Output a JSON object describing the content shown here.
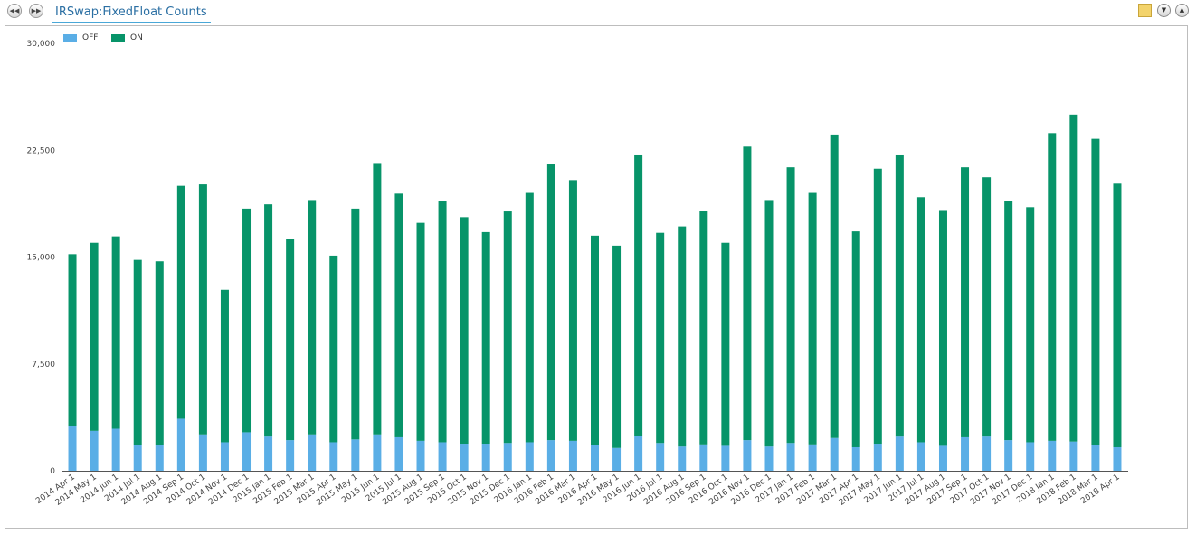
{
  "toolbar": {
    "tab_title": "IRSwap:FixedFloat Counts",
    "prev_icon": "rewind-icon",
    "next_icon": "fast-forward-icon",
    "right_icons": [
      "note-icon",
      "collapse-down-icon",
      "expand-up-icon"
    ]
  },
  "colors": {
    "off": "#5aaee6",
    "on": "#079469",
    "axis": "#555555",
    "text": "#444444"
  },
  "chart_data": {
    "type": "bar",
    "stacked": true,
    "title": "",
    "xlabel": "",
    "ylabel": "",
    "ylim": [
      0,
      30000
    ],
    "yticks": [
      "0",
      "7,500",
      "15,000",
      "22,500",
      "30,000"
    ],
    "ytick_values": [
      0,
      7500,
      15000,
      22500,
      30000
    ],
    "grid": false,
    "legend_position": "top-left",
    "categories": [
      "2014 Apr 1",
      "2014 May 1",
      "2014 Jun 1",
      "2014 Jul 1",
      "2014 Aug 1",
      "2014 Sep 1",
      "2014 Oct 1",
      "2014 Nov 1",
      "2014 Dec 1",
      "2015 Jan 1",
      "2015 Feb 1",
      "2015 Mar 1",
      "2015 Apr 1",
      "2015 May 1",
      "2015 Jun 1",
      "2015 Jul 1",
      "2015 Aug 1",
      "2015 Sep 1",
      "2015 Oct 1",
      "2015 Nov 1",
      "2015 Dec 1",
      "2016 Jan 1",
      "2016 Feb 1",
      "2016 Mar 1",
      "2016 Apr 1",
      "2016 May 1",
      "2016 Jun 1",
      "2016 Jul 1",
      "2016 Aug 1",
      "2016 Sep 1",
      "2016 Oct 1",
      "2016 Nov 1",
      "2016 Dec 1",
      "2017 Jan 1",
      "2017 Feb 1",
      "2017 Mar 1",
      "2017 Apr 1",
      "2017 May 1",
      "2017 Jun 1",
      "2017 Jul 1",
      "2017 Aug 1",
      "2017 Sep 1",
      "2017 Oct 1",
      "2017 Nov 1",
      "2017 Dec 1",
      "2018 Jan 1",
      "2018 Feb 1",
      "2018 Mar 1",
      "2018 Apr 1"
    ],
    "series": [
      {
        "name": "OFF",
        "values": [
          3150,
          2800,
          2950,
          1800,
          1800,
          3650,
          2550,
          2000,
          2700,
          2400,
          2150,
          2550,
          2000,
          2200,
          2550,
          2350,
          2100,
          2000,
          1900,
          1900,
          1950,
          2000,
          2150,
          2100,
          1800,
          1600,
          2450,
          1950,
          1700,
          1850,
          1750,
          2150,
          1700,
          1950,
          1850,
          2300,
          1650,
          1900,
          2400,
          2000,
          1750,
          2350,
          2400,
          2150,
          2000,
          2100,
          2050,
          1800,
          1650
        ]
      },
      {
        "name": "ON",
        "values": [
          12050,
          13200,
          13500,
          13000,
          12900,
          16350,
          17550,
          10700,
          15700,
          16300,
          14150,
          16450,
          13100,
          16200,
          19050,
          17100,
          15300,
          16900,
          15900,
          14850,
          16250,
          17500,
          19350,
          18300,
          14700,
          14200,
          19750,
          14750,
          15450,
          16400,
          14250,
          20600,
          17300,
          19350,
          17650,
          21300,
          15150,
          19300,
          19800,
          17200,
          16550,
          18950,
          18200,
          16800,
          16500,
          21600,
          22950,
          21500,
          18500
        ]
      }
    ]
  }
}
